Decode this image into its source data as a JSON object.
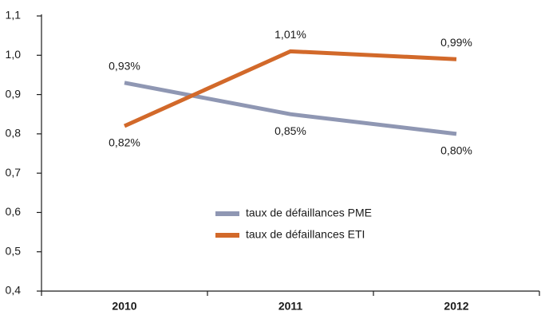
{
  "chart_data": {
    "type": "line",
    "categories": [
      "2010",
      "2011",
      "2012"
    ],
    "series": [
      {
        "name": "taux de défaillances PME",
        "color": "#8f97b3",
        "values": [
          0.93,
          0.85,
          0.8
        ],
        "value_labels": [
          "0,93%",
          "0,85%",
          "0,80%"
        ]
      },
      {
        "name": "taux de défaillances ETI",
        "color": "#d2692a",
        "values": [
          0.82,
          1.01,
          0.99
        ],
        "value_labels": [
          "0,82%",
          "1,01%",
          "0,99%"
        ]
      }
    ],
    "ylim": [
      0.4,
      1.1
    ],
    "yticks": [
      {
        "value": 0.4,
        "label": "0,4"
      },
      {
        "value": 0.5,
        "label": "0,5"
      },
      {
        "value": 0.6,
        "label": "0,6"
      },
      {
        "value": 0.7,
        "label": "0,7"
      },
      {
        "value": 0.8,
        "label": "0,8"
      },
      {
        "value": 0.9,
        "label": "0,9"
      },
      {
        "value": 1.0,
        "label": "1,0"
      },
      {
        "value": 1.1,
        "label": "1,1"
      }
    ],
    "legend": "center"
  }
}
